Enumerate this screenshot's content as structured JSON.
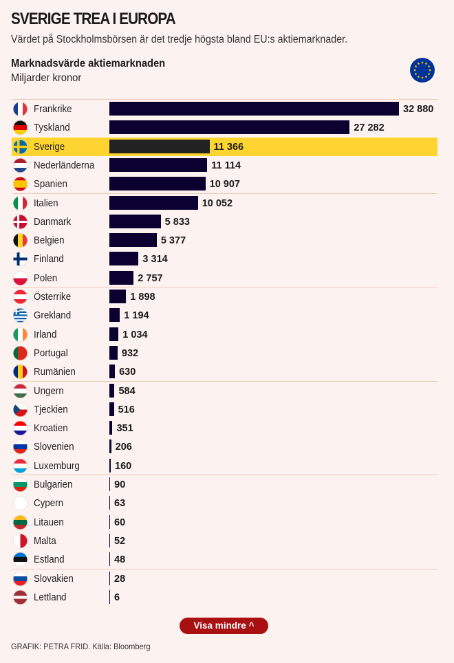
{
  "header": {
    "title": "SVERIGE TREA I EUROPA",
    "subtitle": "Värdet på Stockholmsbörsen är det tredje högsta bland EU:s aktiemarknader."
  },
  "chart_data": {
    "type": "bar",
    "orientation": "horizontal",
    "title": "Marknadsvärde aktiemarknaden",
    "unit": "Miljarder kronor",
    "highlight": "Sverige",
    "highlight_color": "#fed530",
    "bar_color": "#0b0030",
    "categories": [
      "Frankrike",
      "Tyskland",
      "Sverige",
      "Nederländerna",
      "Spanien",
      "Italien",
      "Danmark",
      "Belgien",
      "Finland",
      "Polen",
      "Österrike",
      "Grekland",
      "Irland",
      "Portugal",
      "Rumänien",
      "Ungern",
      "Tjeckien",
      "Kroatien",
      "Slovenien",
      "Luxemburg",
      "Bulgarien",
      "Cypern",
      "Litauen",
      "Malta",
      "Estland",
      "Slovakien",
      "Lettland"
    ],
    "values": [
      32880,
      27282,
      11366,
      11114,
      10907,
      10052,
      5833,
      5377,
      3314,
      2757,
      1898,
      1194,
      1034,
      932,
      630,
      584,
      516,
      351,
      206,
      160,
      90,
      63,
      60,
      52,
      48,
      28,
      6
    ],
    "labels": [
      "32 880",
      "27 282",
      "11 366",
      "11 114",
      "10 907",
      "10 052",
      "5 833",
      "5 377",
      "3 314",
      "2 757",
      "1 898",
      "1 194",
      "1 034",
      "932",
      "630",
      "584",
      "516",
      "351",
      "206",
      "160",
      "90",
      "63",
      "60",
      "52",
      "48",
      "28",
      "6"
    ]
  },
  "flags": [
    [
      "v",
      "#1d3b94",
      "#ffffff",
      "#e8303a"
    ],
    [
      "h",
      "#111111",
      "#dd0000",
      "#ffce00"
    ],
    [
      "se"
    ],
    [
      "h",
      "#ae1c28",
      "#ffffff",
      "#21468b"
    ],
    [
      "h",
      "#c60b1e",
      "#ffc400",
      "#ffc400",
      "#c60b1e"
    ],
    [
      "v",
      "#009246",
      "#ffffff",
      "#ce2b37"
    ],
    [
      "dk"
    ],
    [
      "v",
      "#111111",
      "#fdda24",
      "#ef3340"
    ],
    [
      "fi"
    ],
    [
      "h",
      "#ffffff",
      "#dc143c"
    ],
    [
      "h",
      "#ed2939",
      "#ffffff",
      "#ed2939"
    ],
    [
      "gr"
    ],
    [
      "v",
      "#169b62",
      "#ffffff",
      "#ff883e"
    ],
    [
      "v",
      "#046a38",
      "#da291c",
      "#da291c"
    ],
    [
      "v",
      "#002b7f",
      "#fcd116",
      "#ce1126"
    ],
    [
      "h",
      "#cd2a3e",
      "#ffffff",
      "#436f4d"
    ],
    [
      "cz"
    ],
    [
      "h",
      "#ff0000",
      "#ffffff",
      "#171796"
    ],
    [
      "h",
      "#ffffff",
      "#0038a8",
      "#e1231b"
    ],
    [
      "h",
      "#ed2939",
      "#ffffff",
      "#00a1de"
    ],
    [
      "h",
      "#ffffff",
      "#00966e",
      "#d62612"
    ],
    [
      "h",
      "#ffffff",
      "#ffffff"
    ],
    [
      "h",
      "#fdb913",
      "#006a44",
      "#c1272d"
    ],
    [
      "v",
      "#ffffff",
      "#cf142b"
    ],
    [
      "h",
      "#0072ce",
      "#111111",
      "#ffffff"
    ],
    [
      "h",
      "#ffffff",
      "#0b4ea2",
      "#ee1c25"
    ],
    [
      "h",
      "#9e3039",
      "#9e3039",
      "#ffffff",
      "#9e3039",
      "#9e3039"
    ]
  ],
  "eu_flag": {
    "blue": "#003399",
    "stars": "#ffcc00"
  },
  "button": {
    "label": "Visa mindre ^"
  },
  "source": "GRAFIK: PETRA FRID. Källa: Bloomberg"
}
